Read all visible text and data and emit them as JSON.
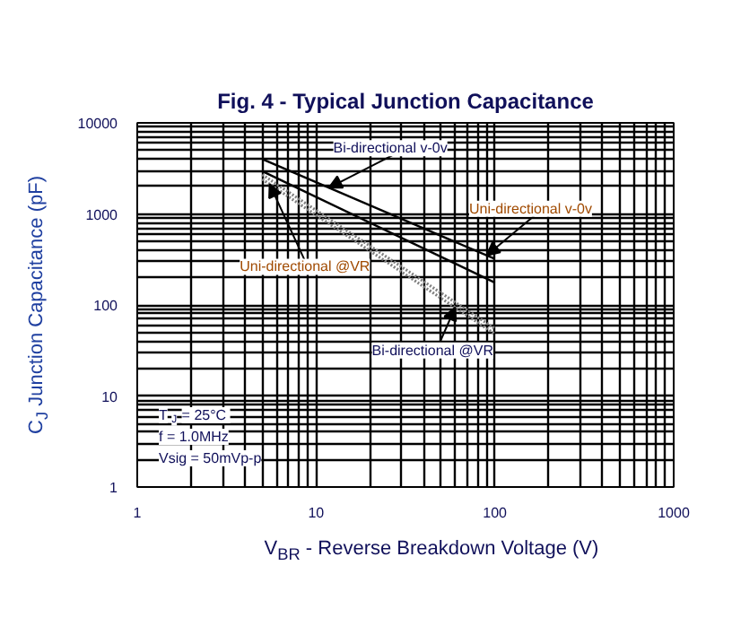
{
  "chart_data": {
    "type": "line",
    "title": "Fig. 4 - Typical Junction Capacitance",
    "xlabel": "V$_{BR}$ - Reverse Breakdown Voltage (V)",
    "ylabel": "C$_{J}$ Junction Capacitance (pF)",
    "log": "xy",
    "grid": true,
    "xlim": [
      1,
      1000
    ],
    "ylim": [
      1,
      10000
    ],
    "xticks": [
      1,
      10,
      100,
      1000
    ],
    "yticks": [
      1,
      10,
      100,
      1000,
      10000
    ],
    "x": [
      5,
      100
    ],
    "series": [
      {
        "color": "#000000",
        "line_style": "solid",
        "values": [
          4000,
          320
        ]
      },
      {
        "color": "#000000",
        "line_style": "solid",
        "values": [
          2950,
          176
        ]
      },
      {
        "color": "#808080",
        "line_style": "dotted",
        "values": [
          2700,
          55
        ]
      },
      {
        "color": "#808080",
        "line_style": "dotted",
        "values": [
          2400,
          48
        ]
      }
    ],
    "annotations": [
      {
        "text": "Bi-directional v-0v",
        "x": 11.8,
        "y": 1940
      },
      {
        "text": "Uni-directional v-0v",
        "x": 90,
        "y": 350
      },
      {
        "text": "Uni-directional @VR",
        "x": 5.5,
        "y": 2120
      },
      {
        "text": "Bi-directional @VR",
        "x": 60,
        "y": 94
      },
      "T$_{J}$ = 25°C",
      "f = 1.0MHz",
      "Vsig = 50mVp-p"
    ]
  }
}
